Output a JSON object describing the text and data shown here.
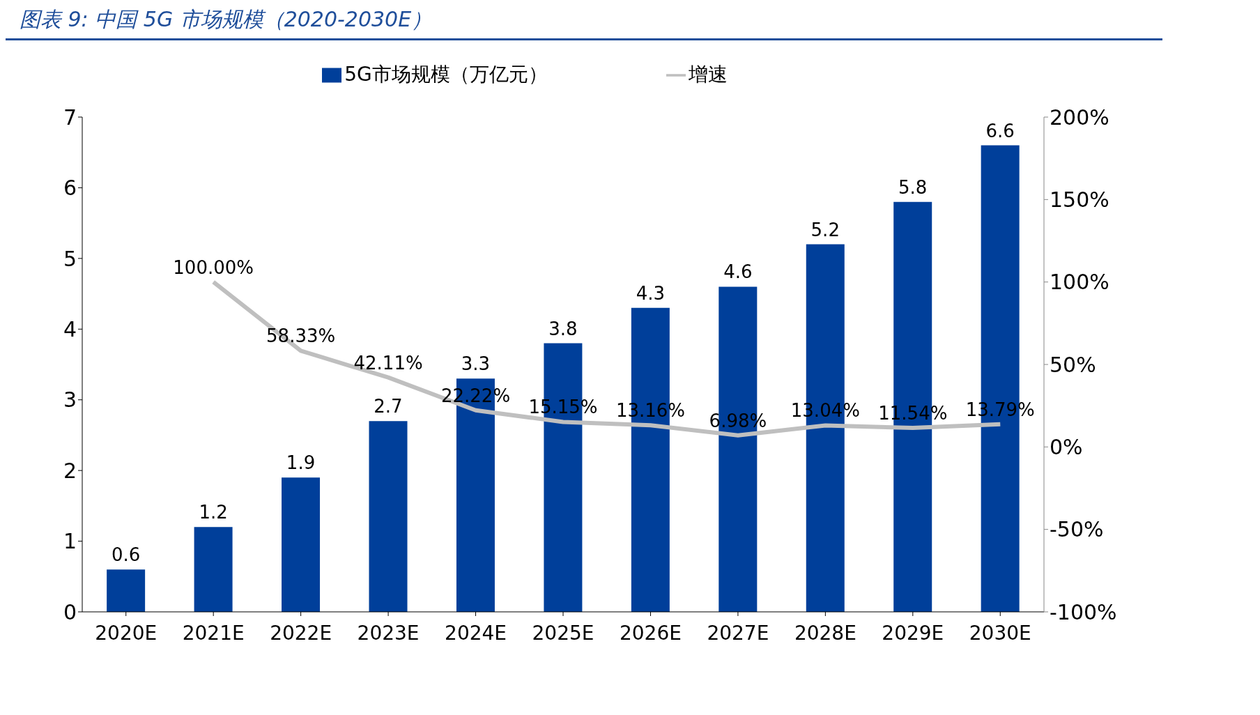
{
  "chart_data": {
    "type": "bar",
    "title": "图表 9:  中国 5G 市场规模（2020-2030E）",
    "categories": [
      "2020E",
      "2021E",
      "2022E",
      "2023E",
      "2024E",
      "2025E",
      "2026E",
      "2027E",
      "2028E",
      "2029E",
      "2030E"
    ],
    "series": [
      {
        "name": "5G市场规模（万亿元）",
        "color": "#003f9a",
        "values": [
          0.6,
          1.2,
          1.9,
          2.7,
          3.3,
          3.8,
          4.3,
          4.6,
          5.2,
          5.8,
          6.6
        ],
        "value_labels": [
          "0.6",
          "1.2",
          "1.9",
          "2.7",
          "3.3",
          "3.8",
          "4.3",
          "4.6",
          "5.2",
          "5.8",
          "6.6"
        ]
      },
      {
        "name": "增速",
        "type": "line",
        "axis": "y2",
        "color": "#bfbfbf",
        "marker": "none",
        "line_style": "solid",
        "values": [
          null,
          100,
          58.33,
          42.11,
          22.22,
          15.15,
          13.16,
          6.98,
          13.04,
          11.54,
          13.79
        ],
        "value_labels": [
          null,
          "100.00%",
          "58.33%",
          "42.11%",
          "22.22%",
          "15.15%",
          "13.16%",
          "6.98%",
          "13.04%",
          "11.54%",
          "13.79%"
        ]
      }
    ],
    "ylim": [
      0,
      7
    ],
    "yticks": [
      0,
      1,
      2,
      3,
      4,
      5,
      6,
      7
    ],
    "y2lim": [
      -100,
      200
    ],
    "y2ticks": [
      {
        "value": -100,
        "label": "-100%"
      },
      {
        "value": -50,
        "label": "-50%"
      },
      {
        "value": 0,
        "label": "0%"
      },
      {
        "value": 50,
        "label": "50%"
      },
      {
        "value": 100,
        "label": "100%"
      },
      {
        "value": 150,
        "label": "150%"
      },
      {
        "value": 200,
        "label": "200%"
      }
    ],
    "legend": "top",
    "grid": false
  }
}
